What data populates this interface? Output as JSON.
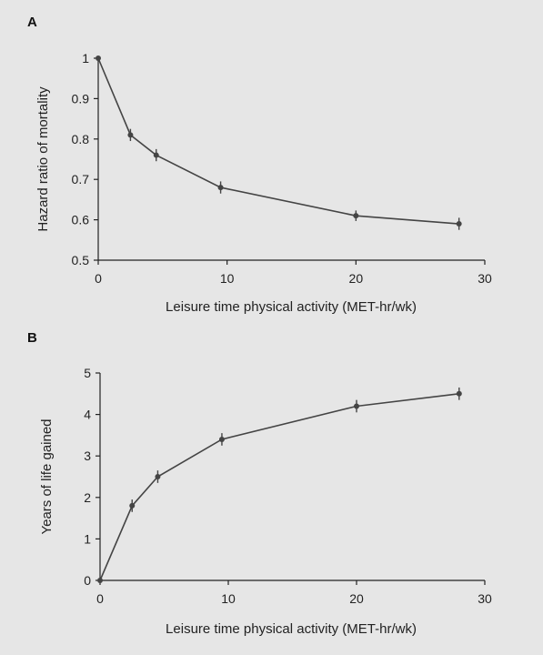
{
  "chart_data": [
    {
      "panel": "A",
      "type": "line",
      "x": [
        0,
        2.5,
        4.5,
        9.5,
        20,
        28
      ],
      "series": [
        {
          "values": [
            1.0,
            0.81,
            0.76,
            0.68,
            0.61,
            0.59
          ],
          "error": [
            0.0,
            0.015,
            0.015,
            0.015,
            0.013,
            0.015
          ]
        }
      ],
      "xlabel": "Leisure time physical activity (MET-hr/wk)",
      "ylabel": "Hazard ratio of mortality",
      "xlim": [
        0,
        30
      ],
      "ylim": [
        0.5,
        1.0
      ],
      "xticks": [
        "0",
        "10",
        "20",
        "30"
      ],
      "yticks": [
        "0.5",
        "0.6",
        "0.7",
        "0.8",
        "0.9",
        "1"
      ],
      "grid": false
    },
    {
      "panel": "B",
      "type": "line",
      "x": [
        0,
        2.5,
        4.5,
        9.5,
        20,
        28
      ],
      "series": [
        {
          "values": [
            0,
            1.8,
            2.5,
            3.4,
            4.2,
            4.5
          ],
          "error": [
            0.0,
            0.15,
            0.15,
            0.15,
            0.15,
            0.15
          ]
        }
      ],
      "xlabel": "Leisure time physical activity (MET-hr/wk)",
      "ylabel": "Years of life gained",
      "xlim": [
        0,
        30
      ],
      "ylim": [
        0,
        5
      ],
      "xticks": [
        "0",
        "10",
        "20",
        "30"
      ],
      "yticks": [
        "0",
        "1",
        "2",
        "3",
        "4",
        "5"
      ],
      "grid": false
    }
  ],
  "colors": {
    "background": "#e6e6e6",
    "line": "#444444",
    "axis": "#222222"
  }
}
